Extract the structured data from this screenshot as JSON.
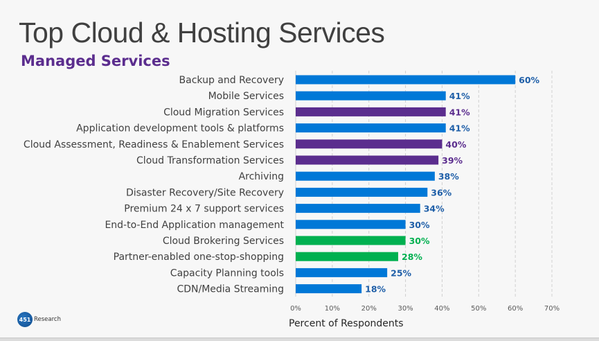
{
  "chart_data": {
    "type": "bar",
    "orientation": "horizontal",
    "title": "Top Cloud & Hosting Services",
    "subtitle": "Managed Services",
    "xlabel": "Percent of Respondents",
    "ylabel": "",
    "xlim": [
      0,
      70
    ],
    "xticks": [
      "0%",
      "10%",
      "20%",
      "30%",
      "40%",
      "50%",
      "60%",
      "70%"
    ],
    "grid": true,
    "categories": [
      "Backup and Recovery",
      "Mobile Services",
      "Cloud Migration Services ",
      "Application development tools & platforms",
      "Cloud Assessment, Readiness & Enablement Services",
      "Cloud Transformation Services ",
      "Archiving",
      "Disaster Recovery/Site Recovery",
      "Premium 24 x 7 support services",
      "End-to-End Application management",
      "Cloud Brokering Services",
      "Partner-enabled one-stop-shopping",
      "Capacity Planning tools",
      "CDN/Media Streaming"
    ],
    "values": [
      60,
      41,
      41,
      41,
      40,
      39,
      38,
      36,
      34,
      30,
      30,
      28,
      25,
      18
    ],
    "value_labels": [
      "60%",
      "41%",
      "41%",
      "41%",
      "40%",
      "39%",
      "38%",
      "36%",
      "34%",
      "30%",
      "30%",
      "28%",
      "25%",
      "18%"
    ],
    "bar_groups": [
      "blue",
      "blue",
      "purple",
      "blue",
      "purple",
      "purple",
      "blue",
      "blue",
      "blue",
      "blue",
      "green",
      "green",
      "blue",
      "blue"
    ]
  },
  "colors": {
    "blue": "#0078d7",
    "purple": "#5b2d8e",
    "green": "#00b050",
    "blue_label": "#1f5fa8",
    "purple_label": "#5b2d8e",
    "green_label": "#00b050"
  },
  "logo": {
    "number": "451",
    "text": "Research"
  }
}
